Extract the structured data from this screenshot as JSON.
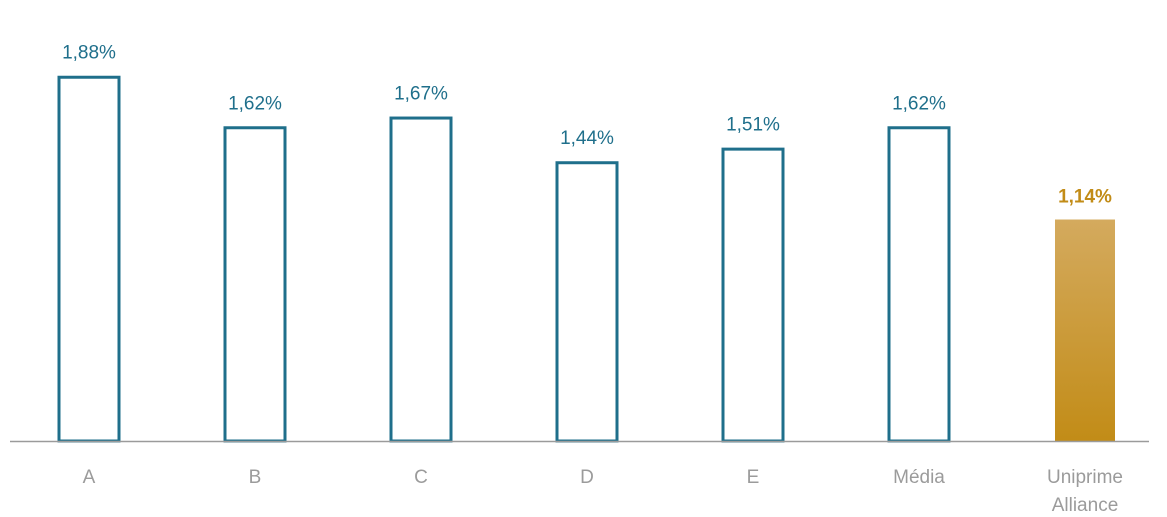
{
  "chart_data": {
    "type": "bar",
    "categories": [
      "A",
      "B",
      "C",
      "D",
      "E",
      "Média",
      "Uniprime Alliance"
    ],
    "category_lines": [
      [
        "A"
      ],
      [
        "B"
      ],
      [
        "C"
      ],
      [
        "D"
      ],
      [
        "E"
      ],
      [
        "Média"
      ],
      [
        "Uniprime",
        "Alliance"
      ]
    ],
    "values": [
      1.88,
      1.62,
      1.67,
      1.44,
      1.51,
      1.62,
      1.14
    ],
    "data_labels": [
      "1,88%",
      "1,62%",
      "1,67%",
      "1,44%",
      "1,51%",
      "1,62%",
      "1,14%"
    ],
    "highlight_index": 6,
    "ylim": [
      0,
      2.1
    ],
    "grid": false,
    "title": "",
    "xlabel": "",
    "ylabel": ""
  },
  "colors": {
    "outline": "#1f6f8b",
    "highlight_top": "#d4aa5e",
    "highlight_bottom": "#c28c17",
    "axis": "#9b9b9b",
    "category_text": "#9b9b9b"
  }
}
